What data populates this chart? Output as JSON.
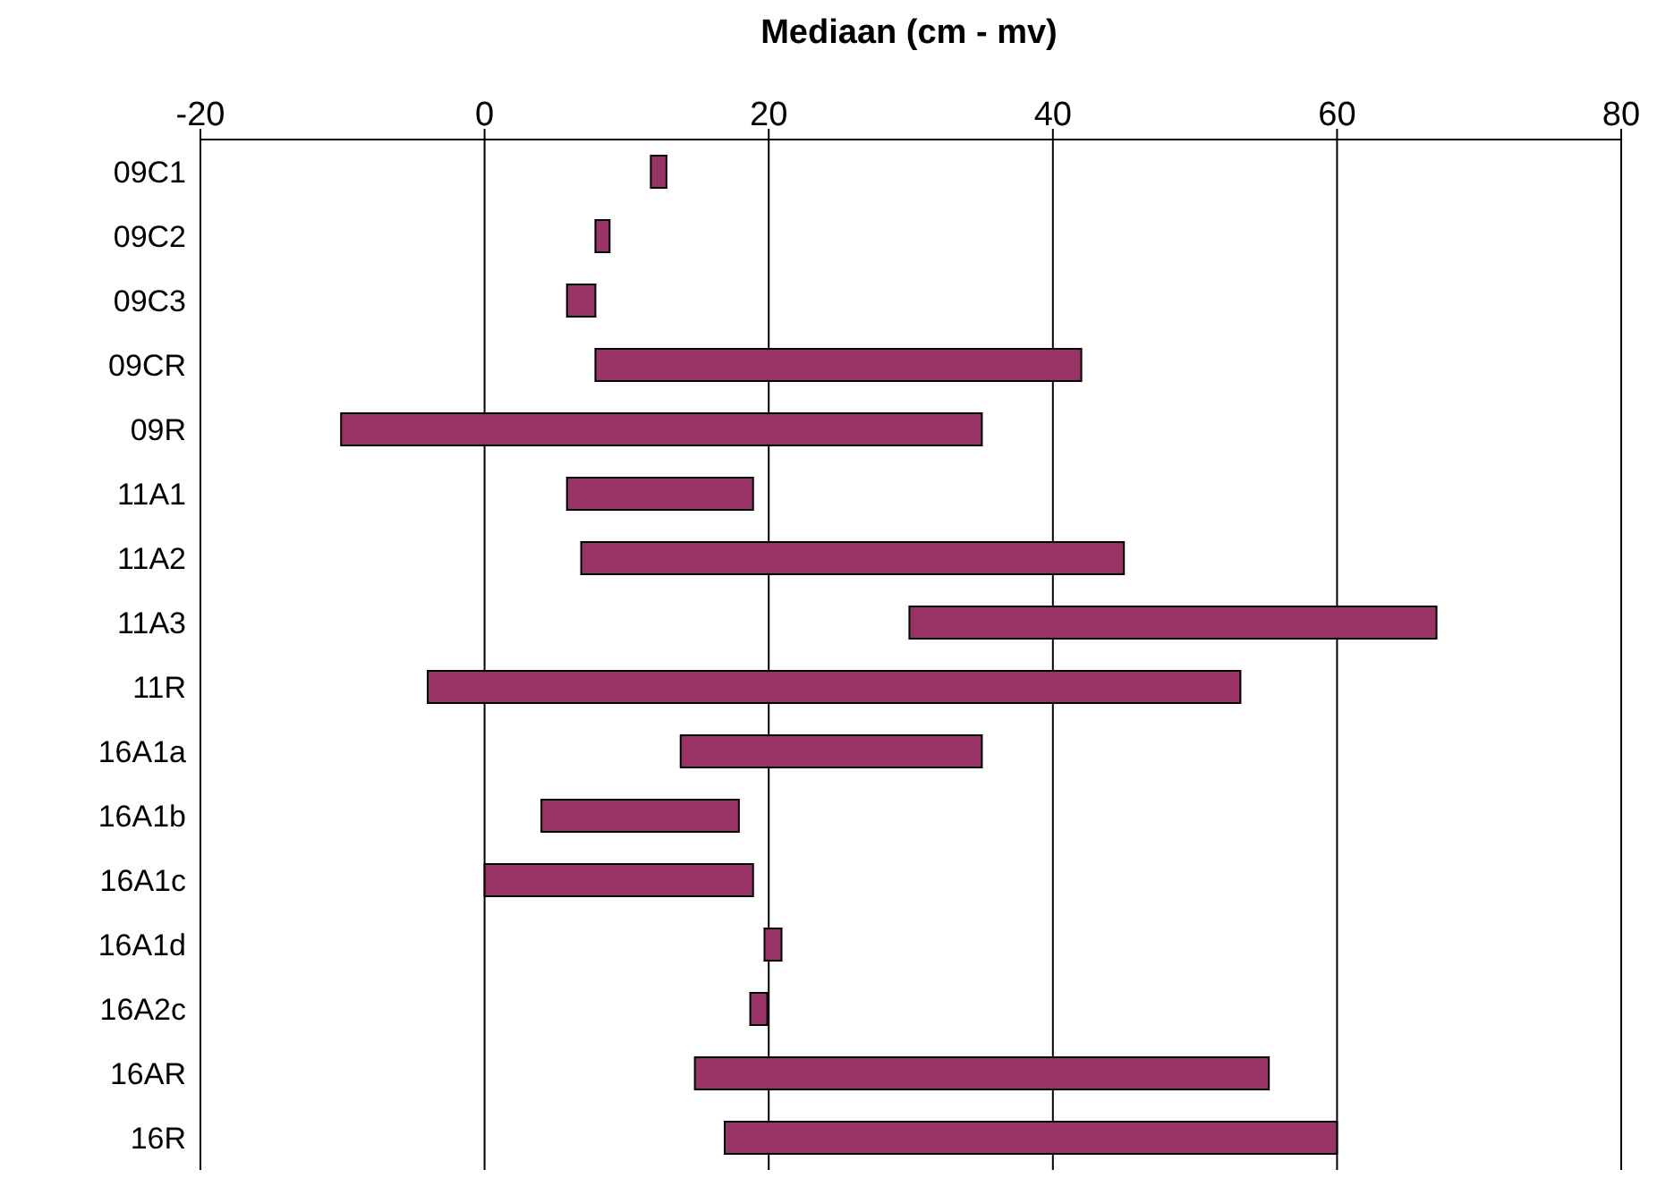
{
  "chart_data": {
    "type": "bar",
    "orientation": "horizontal",
    "xlabel": "Mediaan (cm - mv)",
    "categories": [
      "09C1",
      "09C2",
      "09C3",
      "09CR",
      "09R",
      "11A1",
      "11A2",
      "11A3",
      "11R",
      "16A1a",
      "16A1b",
      "16A1c",
      "16A1d",
      "16A2c",
      "16AR",
      "16R"
    ],
    "base": [
      11.7,
      7.8,
      5.8,
      7.8,
      -10.1,
      5.8,
      6.8,
      29.9,
      -4.0,
      13.8,
      4.0,
      0,
      19.7,
      18.7,
      14.8,
      16.9
    ],
    "values": [
      1.1,
      1.0,
      2.0,
      34.2,
      45.1,
      13.1,
      38.2,
      37.1,
      57.2,
      21.2,
      13.9,
      18.9,
      1.2,
      1.2,
      40.4,
      43.1
    ],
    "color": "#993366",
    "xlim": [
      -20,
      80
    ],
    "xticks": [
      -20,
      0,
      20,
      40,
      60,
      80
    ],
    "grid": "x"
  }
}
